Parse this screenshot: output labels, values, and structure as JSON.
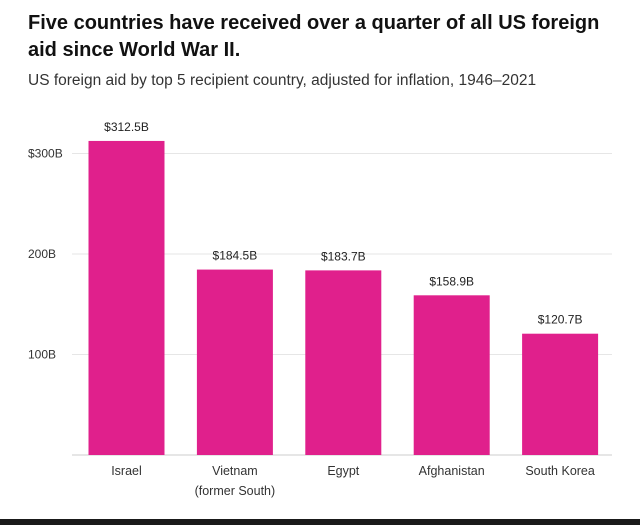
{
  "header": {
    "title": "Five countries have received over a quarter of all US foreign aid since World War II.",
    "subtitle": "US foreign aid by top 5 recipient country, adjusted for inflation, 1946–2021"
  },
  "colors": {
    "bar": "#e0208c",
    "grid": "#e6e6e6",
    "axis": "#cccccc"
  },
  "chart_data": {
    "type": "bar",
    "categories": [
      [
        "Israel"
      ],
      [
        "Vietnam",
        "(former South)"
      ],
      [
        "Egypt"
      ],
      [
        "Afghanistan"
      ],
      [
        "South Korea"
      ]
    ],
    "values": [
      312.5,
      184.5,
      183.7,
      158.9,
      120.7
    ],
    "value_labels": [
      "$312.5B",
      "$184.5B",
      "$183.7B",
      "$158.9B",
      "$120.7B"
    ],
    "ylim": [
      0,
      330
    ],
    "yticks": [
      {
        "value": 100,
        "label": "100B"
      },
      {
        "value": 200,
        "label": "200B"
      },
      {
        "value": 300,
        "label": "$300B"
      }
    ],
    "grid": true,
    "legend": "none"
  }
}
